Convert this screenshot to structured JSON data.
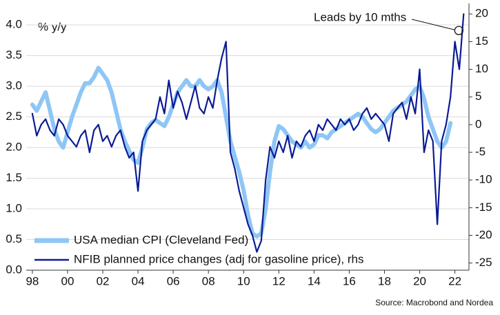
{
  "chart_data": {
    "type": "line",
    "y_label": "% y/y",
    "annotation": "Leads by 10 mths",
    "source": "Source: Macrobond and Nordea",
    "x": [
      1998,
      1998.25,
      1998.5,
      1998.75,
      1999,
      1999.25,
      1999.5,
      1999.75,
      2000,
      2000.25,
      2000.5,
      2000.75,
      2001,
      2001.25,
      2001.5,
      2001.75,
      2002,
      2002.25,
      2002.5,
      2002.75,
      2003,
      2003.25,
      2003.5,
      2003.75,
      2004,
      2004.25,
      2004.5,
      2004.75,
      2005,
      2005.25,
      2005.5,
      2005.75,
      2006,
      2006.25,
      2006.5,
      2006.75,
      2007,
      2007.25,
      2007.5,
      2007.75,
      2008,
      2008.25,
      2008.5,
      2008.75,
      2009,
      2009.25,
      2009.5,
      2009.75,
      2010,
      2010.25,
      2010.5,
      2010.75,
      2011,
      2011.25,
      2011.5,
      2011.75,
      2012,
      2012.25,
      2012.5,
      2012.75,
      2013,
      2013.25,
      2013.5,
      2013.75,
      2014,
      2014.25,
      2014.5,
      2014.75,
      2015,
      2015.25,
      2015.5,
      2015.75,
      2016,
      2016.25,
      2016.5,
      2016.75,
      2017,
      2017.25,
      2017.5,
      2017.75,
      2018,
      2018.25,
      2018.5,
      2018.75,
      2019,
      2019.25,
      2019.5,
      2019.75,
      2020,
      2020.25,
      2020.5,
      2020.75,
      2021,
      2021.25,
      2021.5,
      2021.75,
      2022,
      2022.25,
      2022.5
    ],
    "series": [
      {
        "name": "USA median CPI (Cleveland Fed)",
        "color": "#8ec6f5",
        "axis": "y",
        "values": [
          2.7,
          2.6,
          2.75,
          2.9,
          2.6,
          2.3,
          2.1,
          2.0,
          2.25,
          2.5,
          2.7,
          2.9,
          3.05,
          3.05,
          3.15,
          3.3,
          3.2,
          3.1,
          2.9,
          2.6,
          2.3,
          2.1,
          1.95,
          1.8,
          1.75,
          2.0,
          2.3,
          2.4,
          2.45,
          2.4,
          2.35,
          2.5,
          2.7,
          2.9,
          3.0,
          3.1,
          3.0,
          3.0,
          3.1,
          3.0,
          2.95,
          3.0,
          3.1,
          2.9,
          2.5,
          2.1,
          1.85,
          1.6,
          1.3,
          0.9,
          0.6,
          0.55,
          0.6,
          1.0,
          1.6,
          2.1,
          2.35,
          2.3,
          2.2,
          2.1,
          2.05,
          2.0,
          2.1,
          2.0,
          2.05,
          2.2,
          2.2,
          2.15,
          2.25,
          2.3,
          2.35,
          2.4,
          2.45,
          2.5,
          2.55,
          2.5,
          2.4,
          2.3,
          2.25,
          2.3,
          2.4,
          2.5,
          2.6,
          2.65,
          2.7,
          2.75,
          2.85,
          2.95,
          3.0,
          2.8,
          2.5,
          2.3,
          2.1,
          2.0,
          2.1,
          2.4,
          null,
          null,
          null
        ]
      },
      {
        "name": "NFIB planned price changes (adj for gasoline price), rhs",
        "color": "#0b1a94",
        "axis": "y2",
        "values": [
          2,
          -2,
          0,
          1,
          -1,
          -2,
          1,
          0,
          -2,
          -3,
          -4,
          -2,
          -1,
          -5,
          -1,
          0,
          -3,
          -2,
          -4,
          -2,
          -1,
          -4,
          -6,
          -5,
          -12,
          -3,
          -1,
          0,
          1,
          5,
          2,
          8,
          3,
          6,
          4,
          1,
          4,
          7,
          3,
          2,
          5,
          3,
          8,
          12,
          15,
          -5,
          -8,
          -12,
          -15,
          -18,
          -20,
          -23,
          -21,
          -10,
          -4,
          -6,
          -3,
          -5,
          -2,
          -6,
          -3,
          -4,
          -2,
          -1,
          -3,
          0,
          -1,
          1,
          0,
          -1,
          1,
          0,
          1,
          -1,
          0,
          2,
          3,
          1,
          2,
          1,
          0,
          -3,
          2,
          3,
          4,
          1,
          5,
          2,
          10,
          -5,
          -1,
          -3,
          -18,
          -3,
          0,
          5,
          15,
          10,
          20
        ]
      }
    ],
    "xlim": [
      1997.65,
      2022.8
    ],
    "xticks": [
      {
        "value": 1998,
        "label": "98"
      },
      {
        "value": 2000,
        "label": "00"
      },
      {
        "value": 2002,
        "label": "02"
      },
      {
        "value": 2004,
        "label": "04"
      },
      {
        "value": 2006,
        "label": "06"
      },
      {
        "value": 2008,
        "label": "08"
      },
      {
        "value": 2010,
        "label": "10"
      },
      {
        "value": 2012,
        "label": "12"
      },
      {
        "value": 2014,
        "label": "14"
      },
      {
        "value": 2016,
        "label": "16"
      },
      {
        "value": 2018,
        "label": "18"
      },
      {
        "value": 2020,
        "label": "20"
      },
      {
        "value": 2022,
        "label": "22"
      }
    ],
    "ylim": [
      0,
      4.35
    ],
    "yticks": [
      {
        "value": 0,
        "label": "0.0"
      },
      0.5,
      {
        "value": 1,
        "label": "1.0"
      },
      1.5,
      {
        "value": 2,
        "label": "2.0"
      },
      2.5,
      {
        "value": 3,
        "label": "3.0"
      },
      3.5,
      {
        "value": 4,
        "label": "4.0"
      }
    ],
    "y2lim": [
      -26.3,
      21.9
    ],
    "y2ticks": [
      -25,
      -20,
      -15,
      -10,
      -5,
      0,
      5,
      10,
      15,
      20
    ],
    "grid": true
  }
}
